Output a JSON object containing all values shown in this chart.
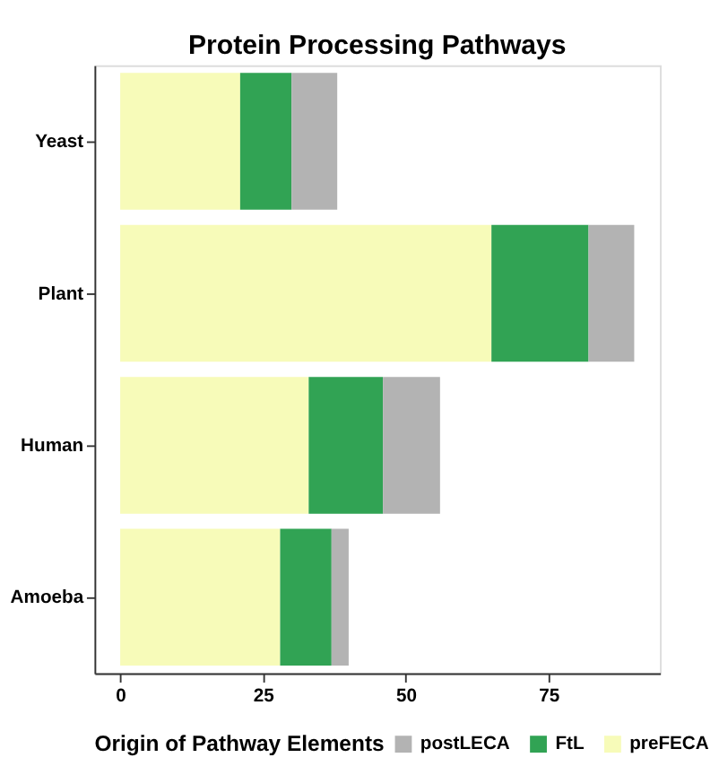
{
  "chart_data": {
    "type": "bar",
    "title": "Protein Processing Pathways",
    "orientation": "horizontal",
    "stacked": true,
    "categories": [
      "Yeast",
      "Plant",
      "Human",
      "Amoeba"
    ],
    "series": [
      {
        "name": "preFECA",
        "color": "#f7fbb9",
        "values": [
          21,
          65,
          33,
          28
        ]
      },
      {
        "name": "FtL",
        "color": "#31a354",
        "values": [
          9,
          17,
          13,
          9
        ]
      },
      {
        "name": "postLECA",
        "color": "#b3b3b3",
        "values": [
          8,
          8,
          10,
          3
        ]
      }
    ],
    "xlim": [
      -4.5,
      94.5
    ],
    "xticks": [
      0,
      25,
      50,
      75
    ],
    "legend_title": "Origin of Pathway Elements",
    "legend": "bottom",
    "grid": false
  }
}
